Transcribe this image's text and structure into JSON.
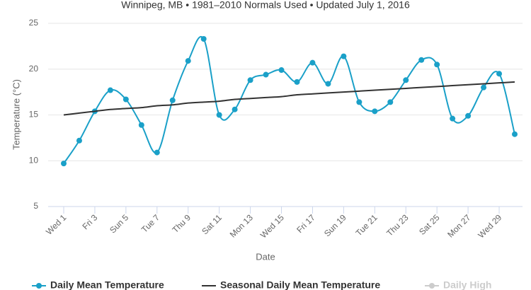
{
  "chart_data": {
    "type": "line",
    "title": "Winnipeg, MB • 1981–2010 Normals Used • Updated July 1, 2016",
    "x_label": "Date",
    "y_label": "Temperature (°C)",
    "categories": [
      "Wed 1",
      null,
      "Fri 3",
      null,
      "Sun 5",
      null,
      "Tue 7",
      null,
      "Thu 9",
      null,
      "Sat 11",
      null,
      "Mon 13",
      null,
      "Wed 15",
      null,
      "Fri 17",
      null,
      "Sun 19",
      null,
      "Tue 21",
      null,
      "Thu 23",
      null,
      "Sat 25",
      null,
      "Mon 27",
      null,
      "Wed 29",
      null
    ],
    "series": [
      {
        "name": "Daily Mean Temperature",
        "color": "#1aa0c8",
        "markers": true,
        "values": [
          9.7,
          12.2,
          15.4,
          17.7,
          16.7,
          13.9,
          10.9,
          16.6,
          20.9,
          23.3,
          15.0,
          15.6,
          18.8,
          19.4,
          19.9,
          18.6,
          20.7,
          18.4,
          21.4,
          16.4,
          15.4,
          16.4,
          18.8,
          21.0,
          20.5,
          14.6,
          14.9,
          18.0,
          19.5,
          12.9
        ]
      },
      {
        "name": "Seasonal Daily Mean Temperature",
        "color": "#333333",
        "markers": false,
        "values": [
          15.0,
          15.2,
          15.4,
          15.6,
          15.7,
          15.8,
          16.0,
          16.1,
          16.3,
          16.4,
          16.5,
          16.7,
          16.8,
          16.9,
          17.0,
          17.2,
          17.3,
          17.4,
          17.5,
          17.6,
          17.7,
          17.8,
          17.9,
          18.0,
          18.1,
          18.2,
          18.3,
          18.4,
          18.5,
          18.6
        ]
      },
      {
        "name": "Daily High",
        "color": "#cccccc",
        "visible": false
      }
    ],
    "ylim": [
      5,
      25
    ],
    "yticks": [
      5,
      10,
      15,
      20,
      25
    ],
    "grid": true,
    "legend": "bottom"
  }
}
